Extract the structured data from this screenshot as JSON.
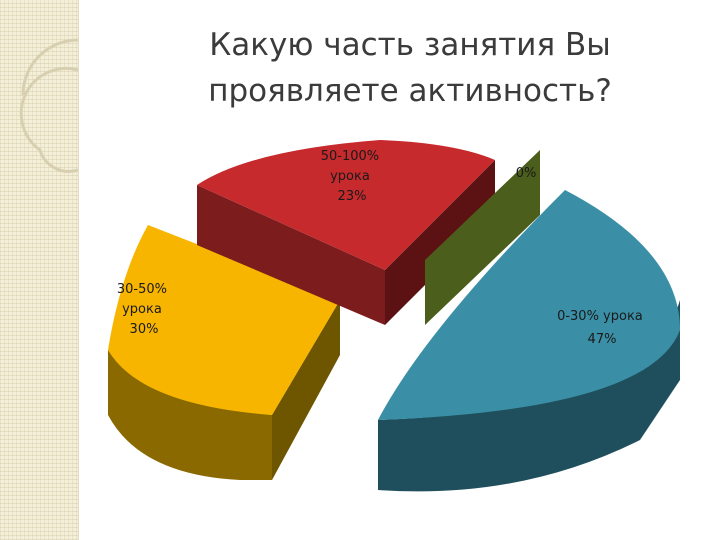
{
  "title": "Какую часть занятия Вы проявляете активность?",
  "chart_data": {
    "type": "pie",
    "style": "3d-exploded",
    "slices": [
      {
        "label_lines": [
          "0-30% урока",
          "47%"
        ],
        "value": 47,
        "color": "#3a8fa6",
        "side_color": "#1f4f5c"
      },
      {
        "label_lines": [
          "30-50%",
          "урока",
          "30%"
        ],
        "value": 30,
        "color": "#f7b500",
        "side_color": "#8a6a00"
      },
      {
        "label_lines": [
          "50-100%",
          "урока",
          "23%"
        ],
        "value": 23,
        "color": "#c62a2d",
        "side_color": "#6a1416"
      },
      {
        "label_lines": [
          "0%"
        ],
        "value": 0,
        "color": "#4b5e1c",
        "side_color": "#34421a"
      }
    ]
  }
}
